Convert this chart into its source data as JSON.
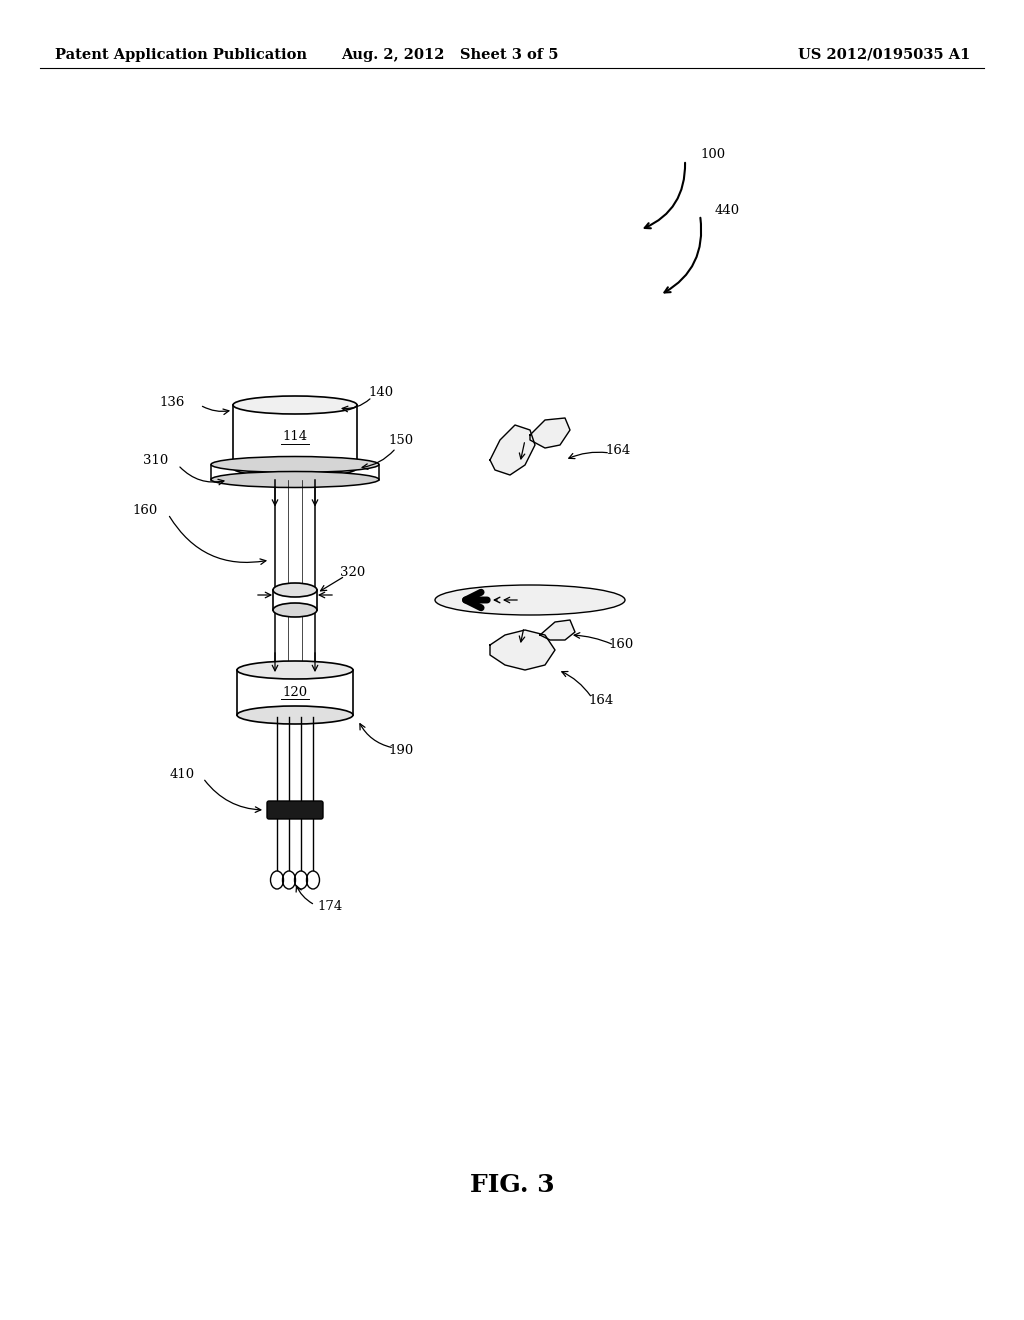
{
  "background_color": "#ffffff",
  "header_left": "Patent Application Publication",
  "header_mid": "Aug. 2, 2012   Sheet 3 of 5",
  "header_right": "US 2012/0195035 A1",
  "figure_label": "FIG. 3",
  "header_fontsize": 10.5,
  "fig_label_fontsize": 18,
  "ref_fontsize": 9.5
}
